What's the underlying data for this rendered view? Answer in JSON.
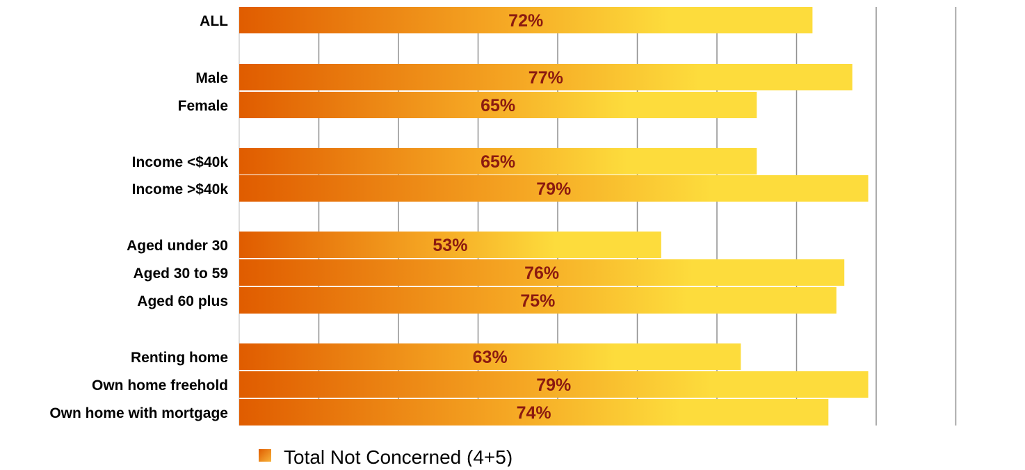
{
  "chart_data": {
    "type": "bar",
    "orientation": "horizontal",
    "categories": [
      "ALL",
      "Male",
      "Female",
      "Income <$40k",
      "Income >$40k",
      "Aged under 30",
      "Aged 30 to 59",
      "Aged 60 plus",
      "Renting home",
      "Own home freehold",
      "Own home with mortgage"
    ],
    "series": [
      {
        "name": "Total Not Concerned (4+5)",
        "values": [
          72,
          77,
          65,
          65,
          79,
          53,
          76,
          75,
          63,
          79,
          74
        ],
        "labels": [
          "72%",
          "77%",
          "65%",
          "65%",
          "79%",
          "53%",
          "76%",
          "75%",
          "63%",
          "79%",
          "74%"
        ]
      }
    ],
    "xlim": [
      0,
      90
    ],
    "grid": true,
    "legend_position": "bottom-left",
    "colors": {
      "bar_start": "#e05c00",
      "bar_mid": "#f5a623",
      "bar_end": "#fddc3c",
      "value_label": "#8b1a10",
      "gridline": "#909090",
      "legend_marker": "#f0801a"
    }
  }
}
